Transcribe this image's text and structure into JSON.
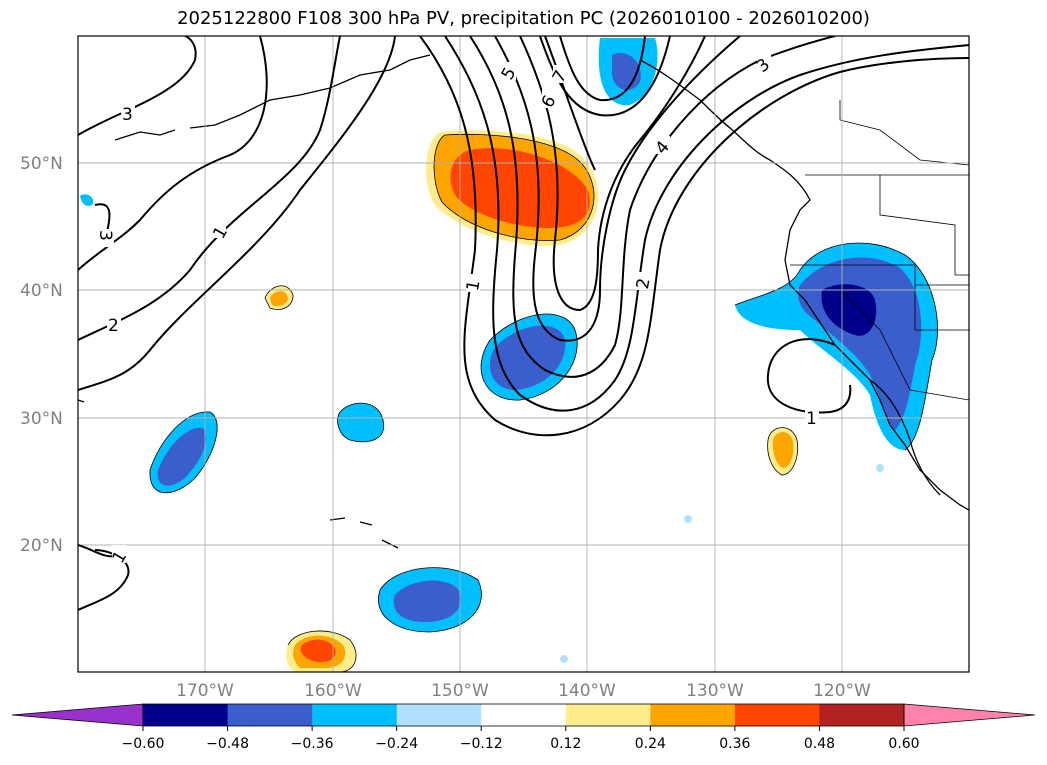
{
  "title": "2025122800 F108 300 hPa PV, precipitation PC (2026010100 - 2026010200)",
  "lat_labels": [
    "50°N",
    "40°N",
    "30°N",
    "20°N"
  ],
  "lon_labels": [
    "170°W",
    "160°W",
    "150°W",
    "140°W",
    "130°W",
    "120°W"
  ],
  "contour_labels": [
    "3",
    "1",
    "3",
    "2",
    "1",
    "5",
    "7",
    "6",
    "4",
    "3",
    "1",
    "2",
    "1"
  ],
  "colorbar": {
    "ticks": [
      "−0.60",
      "−0.48",
      "−0.36",
      "−0.24",
      "−0.12",
      "0.12",
      "0.24",
      "0.36",
      "0.48",
      "0.60"
    ],
    "colors": [
      "#9932cc",
      "#00008b",
      "#3a5fcd",
      "#00bfff",
      "#b0e2ff",
      "#ffffff",
      "#ffec8b",
      "#ffa500",
      "#ff4500",
      "#b22222",
      "#ff82ab"
    ]
  }
}
